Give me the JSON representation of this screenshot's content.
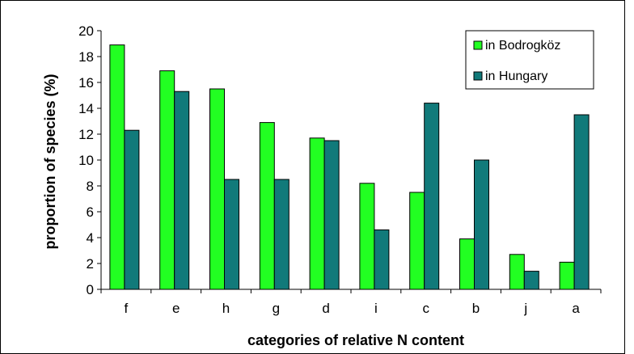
{
  "chart_data": {
    "type": "bar",
    "categories": [
      "f",
      "e",
      "h",
      "g",
      "d",
      "i",
      "c",
      "b",
      "j",
      "a"
    ],
    "series": [
      {
        "name": "in Bodrogköz",
        "values": [
          18.9,
          16.9,
          15.5,
          12.9,
          11.7,
          8.2,
          7.5,
          3.9,
          2.7,
          2.1
        ],
        "color": "#22ff22"
      },
      {
        "name": "in Hungary",
        "values": [
          12.3,
          15.3,
          8.5,
          8.5,
          11.5,
          4.6,
          14.4,
          10.0,
          1.4,
          13.5
        ],
        "color": "#117a7a"
      }
    ],
    "title": "",
    "xlabel": "categories of relative N content",
    "ylabel": "proportion of species (%)",
    "ylim": [
      0,
      20
    ],
    "yticks": [
      "0",
      "2",
      "4",
      "6",
      "8",
      "10",
      "12",
      "14",
      "16",
      "18",
      "20"
    ],
    "grid": false,
    "legend_position": "top-right"
  }
}
